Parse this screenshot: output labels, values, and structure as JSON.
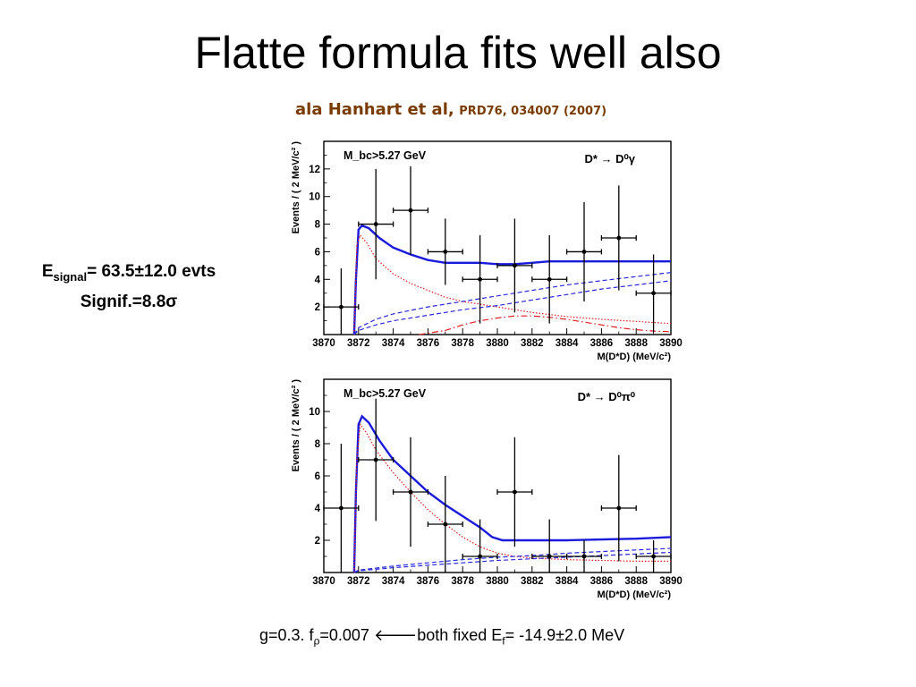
{
  "title": "Flatte formula fits well also",
  "subtitle": {
    "main": "ala Hanhart et al,",
    "ref": "PRD76, 034007 (2007)"
  },
  "side_note": {
    "line1_prefix": "E",
    "line1_sub": "signal",
    "line1_rest": "= 63.5±12.0 evts",
    "line2_prefix": "Signif.=8.8",
    "line2_symbol": "σ"
  },
  "bottom_note": {
    "t1": "g=0.3. f",
    "sub1": "ρ",
    "t2": "=0.007 ",
    "arrow": "🡐",
    "t3": "both fixed  E",
    "sub2": "f",
    "t4": "= -14.9±2.0 MeV"
  },
  "chart_data": [
    {
      "type": "scatter",
      "annotation_left": "M_bc>5.27 GeV",
      "annotation_right": "D* → D⁰γ",
      "ylabel": "Events / ( 2 MeV/c² )",
      "xlabel": "M(D*D) (MeV/c²)",
      "xlim": [
        3870,
        3890
      ],
      "ylim": [
        0,
        14
      ],
      "xticks": [
        3870,
        3872,
        3874,
        3876,
        3878,
        3880,
        3882,
        3884,
        3886,
        3888,
        3890
      ],
      "yticks": [
        2,
        4,
        6,
        8,
        10,
        12
      ],
      "points": [
        {
          "x": 3871,
          "y": 2,
          "err": 2.8
        },
        {
          "x": 3873,
          "y": 8,
          "err": 4
        },
        {
          "x": 3875,
          "y": 9,
          "err": 3.2
        },
        {
          "x": 3877,
          "y": 6,
          "err": 2.4
        },
        {
          "x": 3879,
          "y": 4,
          "err": 3.2
        },
        {
          "x": 3881,
          "y": 5,
          "err": 3.4
        },
        {
          "x": 3883,
          "y": 4,
          "err": 3.2
        },
        {
          "x": 3885,
          "y": 6,
          "err": 3.6
        },
        {
          "x": 3887,
          "y": 7,
          "err": 3.8
        },
        {
          "x": 3889,
          "y": 3,
          "err": 2.8
        }
      ],
      "curves": [
        {
          "style": "solid-blue",
          "points": [
            [
              3871.75,
              0
            ],
            [
              3871.85,
              4
            ],
            [
              3872,
              7.6
            ],
            [
              3872.2,
              7.9
            ],
            [
              3872.6,
              7.7
            ],
            [
              3873.2,
              7
            ],
            [
              3874,
              6.3
            ],
            [
              3875,
              5.8
            ],
            [
              3876,
              5.4
            ],
            [
              3877,
              5.2
            ],
            [
              3878,
              5.2
            ],
            [
              3879,
              5.2
            ],
            [
              3880,
              5.1
            ],
            [
              3881,
              5.1
            ],
            [
              3882,
              5.2
            ],
            [
              3883,
              5.3
            ],
            [
              3884,
              5.3
            ],
            [
              3886,
              5.3
            ],
            [
              3888,
              5.3
            ],
            [
              3890,
              5.3
            ]
          ]
        },
        {
          "style": "dotted-red",
          "points": [
            [
              3871.75,
              0
            ],
            [
              3871.9,
              6.5
            ],
            [
              3872.1,
              7.2
            ],
            [
              3872.5,
              6.6
            ],
            [
              3873,
              5.5
            ],
            [
              3874,
              4.4
            ],
            [
              3875,
              3.7
            ],
            [
              3876,
              3.2
            ],
            [
              3877,
              2.7
            ],
            [
              3878,
              2.4
            ],
            [
              3879,
              2.2
            ],
            [
              3880,
              2
            ],
            [
              3881,
              1.8
            ],
            [
              3882,
              1.6
            ],
            [
              3884,
              1.3
            ],
            [
              3886,
              1.1
            ],
            [
              3888,
              0.95
            ],
            [
              3890,
              0.8
            ]
          ]
        },
        {
          "style": "dashed-blue",
          "points": [
            [
              3871.75,
              0
            ],
            [
              3872,
              0.5
            ],
            [
              3873,
              1.1
            ],
            [
              3874,
              1.5
            ],
            [
              3876,
              2
            ],
            [
              3878,
              2.4
            ],
            [
              3880,
              2.8
            ],
            [
              3882,
              3.2
            ],
            [
              3884,
              3.6
            ],
            [
              3886,
              3.9
            ],
            [
              3888,
              4.2
            ],
            [
              3890,
              4.5
            ]
          ]
        },
        {
          "style": "dashed-blue",
          "points": [
            [
              3871.75,
              0
            ],
            [
              3872,
              0.3
            ],
            [
              3873,
              0.7
            ],
            [
              3874,
              1
            ],
            [
              3876,
              1.4
            ],
            [
              3878,
              1.8
            ],
            [
              3880,
              2.1
            ],
            [
              3882,
              2.5
            ],
            [
              3884,
              2.9
            ],
            [
              3886,
              3.3
            ],
            [
              3888,
              3.6
            ],
            [
              3890,
              3.9
            ]
          ]
        },
        {
          "style": "dashdot-red",
          "points": [
            [
              3875.5,
              0
            ],
            [
              3877,
              0.3
            ],
            [
              3878,
              0.7
            ],
            [
              3879,
              1
            ],
            [
              3880,
              1.2
            ],
            [
              3881,
              1.35
            ],
            [
              3882,
              1.35
            ],
            [
              3883,
              1.25
            ],
            [
              3884,
              1.1
            ],
            [
              3885,
              0.9
            ],
            [
              3886,
              0.7
            ],
            [
              3887,
              0.5
            ],
            [
              3888,
              0.35
            ],
            [
              3889,
              0.25
            ],
            [
              3890,
              0.2
            ]
          ]
        }
      ]
    },
    {
      "type": "scatter",
      "annotation_left": "M_bc>5.27 GeV",
      "annotation_right": "D* → D⁰π⁰",
      "ylabel": "Events / ( 2 MeV/c² )",
      "xlabel": "M(D*D) (MeV/c²)",
      "xlim": [
        3870,
        3890
      ],
      "ylim": [
        0,
        12
      ],
      "xticks": [
        3870,
        3872,
        3874,
        3876,
        3878,
        3880,
        3882,
        3884,
        3886,
        3888,
        3890
      ],
      "yticks": [
        2,
        4,
        6,
        8,
        10
      ],
      "points": [
        {
          "x": 3871,
          "y": 4,
          "err": 4
        },
        {
          "x": 3873,
          "y": 7,
          "err": 3.8
        },
        {
          "x": 3875,
          "y": 5,
          "err": 3.4
        },
        {
          "x": 3877,
          "y": 3,
          "err": 3
        },
        {
          "x": 3879,
          "y": 1,
          "err": 2.3
        },
        {
          "x": 3881,
          "y": 5,
          "err": 3.4
        },
        {
          "x": 3883,
          "y": 1,
          "err": 2.3
        },
        {
          "x": 3885,
          "y": 1,
          "err": 1
        },
        {
          "x": 3887,
          "y": 4,
          "err": 3.3
        },
        {
          "x": 3889,
          "y": 1,
          "err": 1
        }
      ],
      "curves": [
        {
          "style": "solid-blue",
          "points": [
            [
              3871.75,
              0
            ],
            [
              3871.85,
              5
            ],
            [
              3872,
              9.2
            ],
            [
              3872.2,
              9.7
            ],
            [
              3872.6,
              9.3
            ],
            [
              3873.2,
              8.2
            ],
            [
              3874,
              7
            ],
            [
              3875,
              6
            ],
            [
              3876,
              5
            ],
            [
              3877,
              4.2
            ],
            [
              3878,
              3.5
            ],
            [
              3879,
              2.8
            ],
            [
              3879.7,
              2.2
            ],
            [
              3880.3,
              2
            ],
            [
              3882,
              2
            ],
            [
              3884,
              2
            ],
            [
              3886,
              2.05
            ],
            [
              3888,
              2.1
            ],
            [
              3890,
              2.2
            ]
          ]
        },
        {
          "style": "dotted-red",
          "points": [
            [
              3871.75,
              0
            ],
            [
              3871.9,
              7
            ],
            [
              3872.1,
              9.2
            ],
            [
              3872.5,
              8.6
            ],
            [
              3873,
              7.6
            ],
            [
              3874,
              6.2
            ],
            [
              3875,
              5
            ],
            [
              3876,
              3.9
            ],
            [
              3877,
              3
            ],
            [
              3878,
              2.2
            ],
            [
              3879,
              1.6
            ],
            [
              3880,
              1.2
            ],
            [
              3881,
              1
            ],
            [
              3882,
              0.9
            ],
            [
              3884,
              0.8
            ],
            [
              3886,
              0.75
            ],
            [
              3888,
              0.7
            ],
            [
              3890,
              0.7
            ]
          ]
        },
        {
          "style": "dashed-blue",
          "points": [
            [
              3871.75,
              0
            ],
            [
              3872,
              0.15
            ],
            [
              3874,
              0.4
            ],
            [
              3876,
              0.6
            ],
            [
              3878,
              0.8
            ],
            [
              3880,
              0.95
            ],
            [
              3882,
              1.05
            ],
            [
              3884,
              1.2
            ],
            [
              3886,
              1.3
            ],
            [
              3888,
              1.4
            ],
            [
              3890,
              1.5
            ]
          ]
        },
        {
          "style": "dashed-blue",
          "points": [
            [
              3871.75,
              0
            ],
            [
              3872,
              0.1
            ],
            [
              3874,
              0.3
            ],
            [
              3876,
              0.45
            ],
            [
              3878,
              0.6
            ],
            [
              3880,
              0.75
            ],
            [
              3882,
              0.85
            ],
            [
              3884,
              0.95
            ],
            [
              3886,
              1.05
            ],
            [
              3888,
              1.15
            ],
            [
              3890,
              1.25
            ]
          ]
        }
      ]
    }
  ]
}
